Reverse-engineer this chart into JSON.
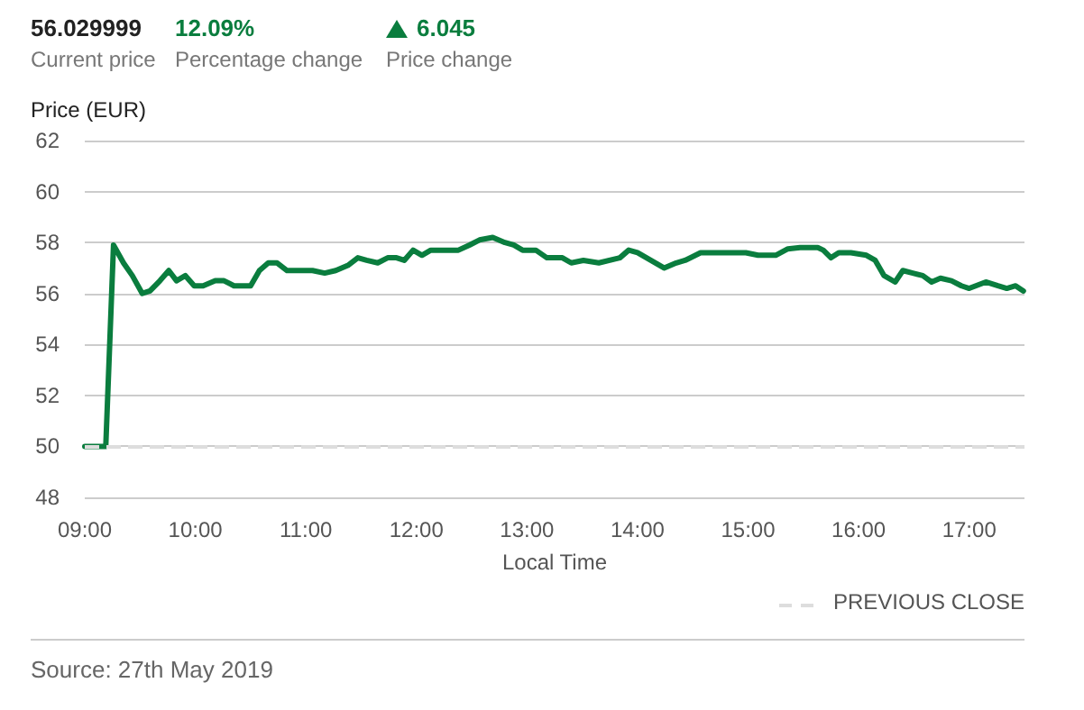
{
  "chart_data": {
    "type": "line",
    "ylabel": "Price (EUR)",
    "xlabel": "Local Time",
    "annotations": [
      "56.029999",
      "Current price",
      "12.09%",
      "Percentage change",
      "6.045",
      "Price change",
      "Source: 27th May 2019"
    ],
    "xlim": [
      9,
      17.5
    ],
    "xticks": [
      {
        "value": 9,
        "label": "09:00"
      },
      {
        "value": 10,
        "label": "10:00"
      },
      {
        "value": 11,
        "label": "11:00"
      },
      {
        "value": 12,
        "label": "12:00"
      },
      {
        "value": 13,
        "label": "13:00"
      },
      {
        "value": 14,
        "label": "14:00"
      },
      {
        "value": 15,
        "label": "15:00"
      },
      {
        "value": 16,
        "label": "16:00"
      },
      {
        "value": 17,
        "label": "17:00"
      }
    ],
    "ylim": [
      48,
      62
    ],
    "yticks": [
      48,
      50,
      52,
      54,
      56,
      58,
      60,
      62
    ],
    "grid": "y",
    "legend": "bottom right",
    "marker": "none",
    "line_style": "solid",
    "ref_lines": [
      {
        "axis": "y",
        "value": 50,
        "label": "PREVIOUS CLOSE",
        "color": "#dddddd",
        "line_style": "dashed"
      }
    ],
    "series": [
      {
        "color": "#0a7d3e",
        "x": [
          9.0,
          9.19,
          9.26,
          9.35,
          9.43,
          9.52,
          9.59,
          9.68,
          9.76,
          9.83,
          9.91,
          9.99,
          10.07,
          10.18,
          10.26,
          10.35,
          10.5,
          10.58,
          10.66,
          10.74,
          10.83,
          11.06,
          11.17,
          11.27,
          11.38,
          11.47,
          11.55,
          11.65,
          11.74,
          11.82,
          11.89,
          11.97,
          12.05,
          12.13,
          12.22,
          12.3,
          12.38,
          12.48,
          12.57,
          12.69,
          12.8,
          12.88,
          12.96,
          13.08,
          13.18,
          13.32,
          13.4,
          13.51,
          13.65,
          13.84,
          13.92,
          14.0,
          14.12,
          14.24,
          14.35,
          14.43,
          14.57,
          14.71,
          14.98,
          15.09,
          15.25,
          15.36,
          15.47,
          15.63,
          15.68,
          15.75,
          15.82,
          15.93,
          16.07,
          16.15,
          16.23,
          16.33,
          16.4,
          16.49,
          16.58,
          16.66,
          16.74,
          16.84,
          16.93,
          17.0,
          17.15,
          17.26,
          17.34,
          17.42,
          17.49
        ],
        "values": [
          50.0,
          50.0,
          57.9,
          57.2,
          56.7,
          56.0,
          56.1,
          56.5,
          56.9,
          56.5,
          56.7,
          56.3,
          56.3,
          56.5,
          56.5,
          56.3,
          56.3,
          56.9,
          57.2,
          57.2,
          56.9,
          56.9,
          56.8,
          56.9,
          57.1,
          57.4,
          57.3,
          57.2,
          57.4,
          57.4,
          57.3,
          57.7,
          57.5,
          57.7,
          57.7,
          57.7,
          57.7,
          57.9,
          58.1,
          58.2,
          58.0,
          57.9,
          57.7,
          57.7,
          57.4,
          57.4,
          57.2,
          57.3,
          57.2,
          57.4,
          57.7,
          57.6,
          57.3,
          57.0,
          57.2,
          57.3,
          57.6,
          57.6,
          57.6,
          57.5,
          57.5,
          57.75,
          57.8,
          57.8,
          57.7,
          57.4,
          57.6,
          57.6,
          57.5,
          57.3,
          56.7,
          56.45,
          56.9,
          56.8,
          56.7,
          56.45,
          56.6,
          56.5,
          56.3,
          56.2,
          56.45,
          56.3,
          56.2,
          56.3,
          56.1
        ]
      }
    ]
  }
}
